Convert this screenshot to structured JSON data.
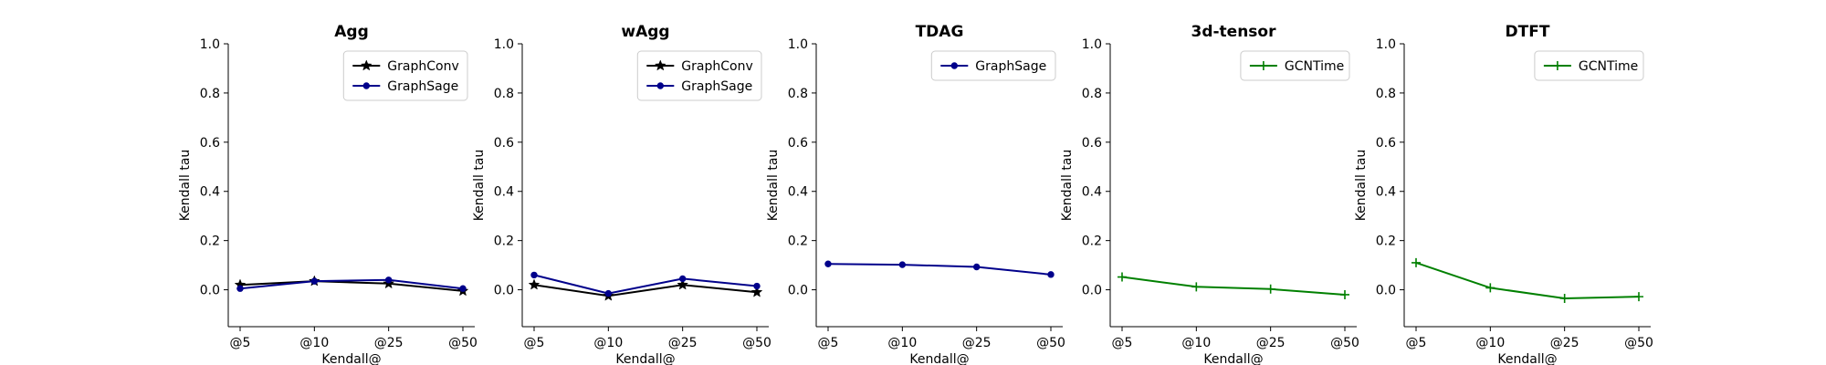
{
  "chart_data": [
    {
      "type": "line",
      "title": "Agg",
      "xlabel": "Kendall@",
      "ylabel": "Kendall tau",
      "categories": [
        "@5",
        "@10",
        "@25",
        "@50"
      ],
      "ylim": [
        -0.15,
        1.0
      ],
      "yticks": [
        "0.0",
        "0.2",
        "0.4",
        "0.6",
        "0.8",
        "1.0"
      ],
      "grid": false,
      "legend_position": "top-right",
      "series": [
        {
          "name": "GraphConv",
          "color": "#000000",
          "marker": "star",
          "values": [
            0.02,
            0.035,
            0.025,
            -0.005
          ]
        },
        {
          "name": "GraphSage",
          "color": "#00008b",
          "marker": "dot",
          "values": [
            0.005,
            0.035,
            0.04,
            0.005
          ]
        }
      ]
    },
    {
      "type": "line",
      "title": "wAgg",
      "xlabel": "Kendall@",
      "ylabel": "Kendall tau",
      "categories": [
        "@5",
        "@10",
        "@25",
        "@50"
      ],
      "ylim": [
        -0.15,
        1.0
      ],
      "yticks": [
        "0.0",
        "0.2",
        "0.4",
        "0.6",
        "0.8",
        "1.0"
      ],
      "grid": false,
      "legend_position": "top-right",
      "series": [
        {
          "name": "GraphConv",
          "color": "#000000",
          "marker": "star",
          "values": [
            0.02,
            -0.025,
            0.02,
            -0.01
          ]
        },
        {
          "name": "GraphSage",
          "color": "#00008b",
          "marker": "dot",
          "values": [
            0.06,
            -0.015,
            0.045,
            0.015
          ]
        }
      ]
    },
    {
      "type": "line",
      "title": "TDAG",
      "xlabel": "Kendall@",
      "ylabel": "Kendall tau",
      "categories": [
        "@5",
        "@10",
        "@25",
        "@50"
      ],
      "ylim": [
        -0.15,
        1.0
      ],
      "yticks": [
        "0.0",
        "0.2",
        "0.4",
        "0.6",
        "0.8",
        "1.0"
      ],
      "grid": false,
      "legend_position": "top-right",
      "series": [
        {
          "name": "GraphSage",
          "color": "#00008b",
          "marker": "dot",
          "values": [
            0.105,
            0.102,
            0.093,
            0.062
          ]
        }
      ]
    },
    {
      "type": "line",
      "title": "3d-tensor",
      "xlabel": "Kendall@",
      "ylabel": "Kendall tau",
      "categories": [
        "@5",
        "@10",
        "@25",
        "@50"
      ],
      "ylim": [
        -0.15,
        1.0
      ],
      "yticks": [
        "0.0",
        "0.2",
        "0.4",
        "0.6",
        "0.8",
        "1.0"
      ],
      "grid": false,
      "legend_position": "top-right",
      "series": [
        {
          "name": "GCNTime",
          "color": "#008000",
          "marker": "plus",
          "values": [
            0.052,
            0.012,
            0.003,
            -0.02
          ]
        }
      ]
    },
    {
      "type": "line",
      "title": "DTFT",
      "xlabel": "Kendall@",
      "ylabel": "Kendall tau",
      "categories": [
        "@5",
        "@10",
        "@25",
        "@50"
      ],
      "ylim": [
        -0.15,
        1.0
      ],
      "yticks": [
        "0.0",
        "0.2",
        "0.4",
        "0.6",
        "0.8",
        "1.0"
      ],
      "grid": false,
      "legend_position": "top-right",
      "series": [
        {
          "name": "GCNTime",
          "color": "#008000",
          "marker": "plus",
          "values": [
            0.11,
            0.008,
            -0.035,
            -0.028
          ]
        }
      ]
    }
  ]
}
